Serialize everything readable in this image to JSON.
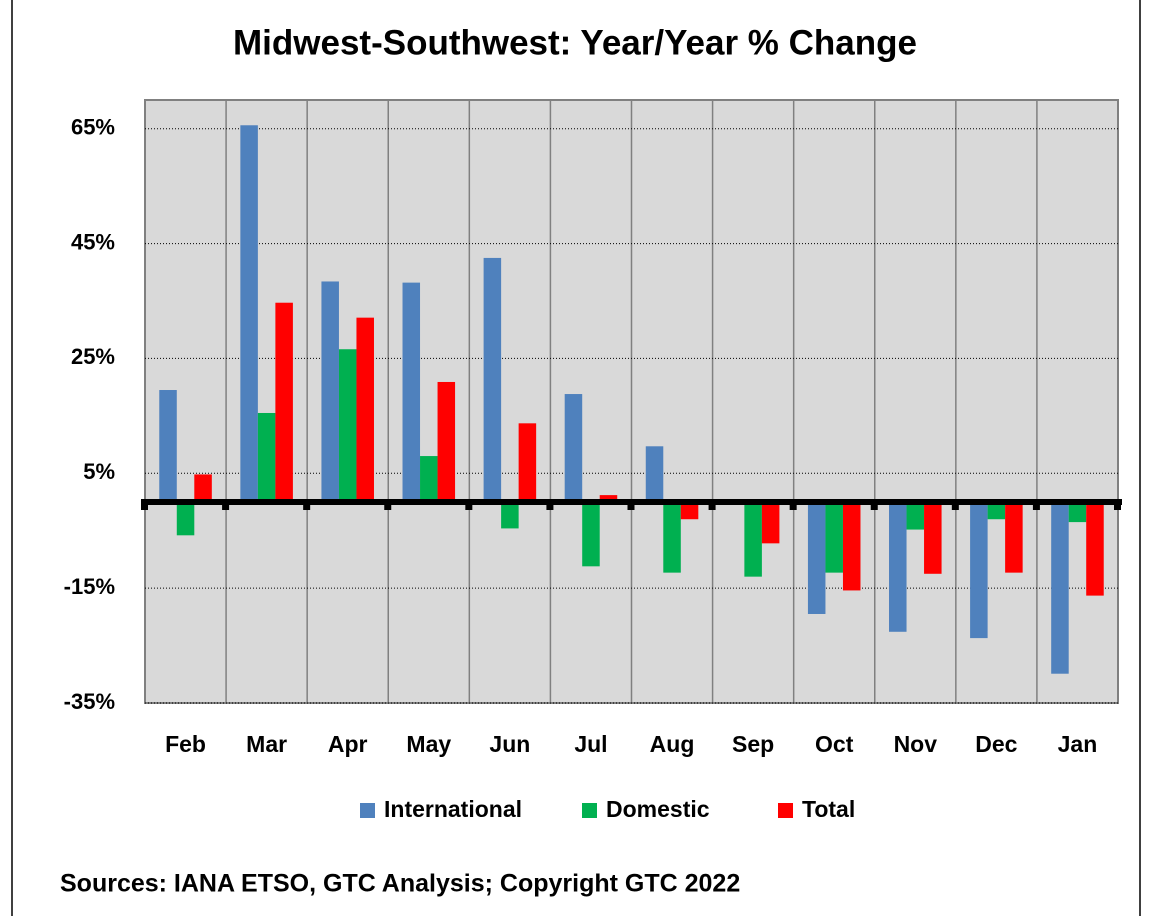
{
  "chart_data": {
    "type": "bar",
    "title": "Midwest-Southwest: Year/Year % Change",
    "categories": [
      "Feb",
      "Mar",
      "Apr",
      "May",
      "Jun",
      "Jul",
      "Aug",
      "Sep",
      "Oct",
      "Nov",
      "Dec",
      "Jan"
    ],
    "series": [
      {
        "name": "International",
        "color": "#4f81bd",
        "values": [
          19.5,
          65.6,
          38.4,
          38.2,
          42.5,
          18.8,
          9.7,
          null,
          -19.5,
          -22.6,
          -23.7,
          -29.9
        ]
      },
      {
        "name": "Domestic",
        "color": "#00b050",
        "values": [
          -5.8,
          15.5,
          26.6,
          8.0,
          -4.6,
          -11.2,
          -12.3,
          -13.0,
          -12.3,
          -4.8,
          -3.0,
          -3.5
        ]
      },
      {
        "name": "Total",
        "color": "#ff0000",
        "values": [
          4.8,
          34.7,
          32.1,
          20.9,
          13.7,
          1.2,
          -3.0,
          -7.2,
          -15.4,
          -12.5,
          -12.3,
          -16.3
        ]
      }
    ],
    "ylim": [
      -35,
      70
    ],
    "yticks": [
      {
        "value": -35,
        "label": "-35%"
      },
      {
        "value": -15,
        "label": "-15%"
      },
      {
        "value": 5,
        "label": "5%"
      },
      {
        "value": 25,
        "label": "25%"
      },
      {
        "value": 45,
        "label": "45%"
      },
      {
        "value": 65,
        "label": "65%"
      }
    ],
    "grid": true,
    "legend": "bottom",
    "source": "Sources: IANA ETSO, GTC Analysis; Copyright GTC 2022"
  }
}
